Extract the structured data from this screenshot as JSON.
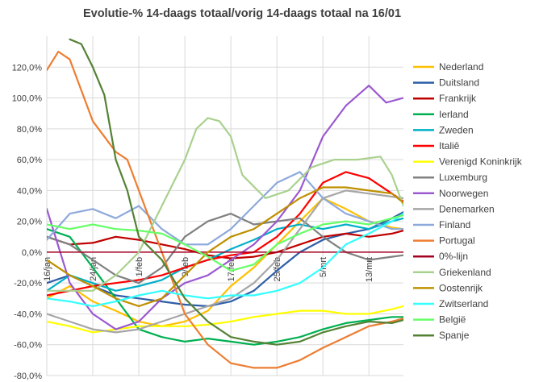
{
  "chart_data": {
    "type": "line",
    "title": "Evolutie-% 14-daags totaal/vorig 14-daags totaal na 16/01",
    "x_tick_labels": [
      "16/jan",
      "24/jan",
      "1/feb",
      "9/feb",
      "17/feb",
      "25/feb",
      "5/mrt",
      "13/mrt"
    ],
    "x_tick_days": [
      0,
      8,
      16,
      24,
      32,
      40,
      48,
      56
    ],
    "x_range": [
      0,
      62
    ],
    "ylim": [
      -80,
      140
    ],
    "y_ticks": [
      -80,
      -60,
      -40,
      -20,
      0,
      20,
      40,
      60,
      80,
      100,
      120
    ],
    "y_tick_labels": [
      "-80,0%",
      "-60,0%",
      "-40,0%",
      "-20,0%",
      "0,0%",
      "20,0%",
      "40,0%",
      "60,0%",
      "80,0%",
      "100,0%",
      "120,0%"
    ],
    "grid": true,
    "legend_position": "right",
    "series": [
      {
        "name": "Nederland",
        "color": "#FFC000",
        "points": [
          [
            0,
            -30
          ],
          [
            4,
            -22
          ],
          [
            8,
            -32
          ],
          [
            12,
            -38
          ],
          [
            16,
            -45
          ],
          [
            20,
            -48
          ],
          [
            24,
            -45
          ],
          [
            28,
            -38
          ],
          [
            32,
            -22
          ],
          [
            36,
            -10
          ],
          [
            40,
            5
          ],
          [
            44,
            20
          ],
          [
            48,
            35
          ],
          [
            52,
            28
          ],
          [
            56,
            20
          ],
          [
            60,
            16
          ],
          [
            62,
            15
          ]
        ]
      },
      {
        "name": "Duitsland",
        "color": "#2E5EA8",
        "points": [
          [
            0,
            -20
          ],
          [
            4,
            -15
          ],
          [
            8,
            -22
          ],
          [
            12,
            -28
          ],
          [
            16,
            -30
          ],
          [
            20,
            -32
          ],
          [
            24,
            -34
          ],
          [
            28,
            -35
          ],
          [
            32,
            -32
          ],
          [
            36,
            -25
          ],
          [
            40,
            -12
          ],
          [
            44,
            0
          ],
          [
            48,
            8
          ],
          [
            52,
            12
          ],
          [
            56,
            15
          ],
          [
            60,
            22
          ],
          [
            62,
            26
          ]
        ]
      },
      {
        "name": "Frankrijk",
        "color": "#C00000",
        "points": [
          [
            0,
            10
          ],
          [
            4,
            5
          ],
          [
            8,
            6
          ],
          [
            12,
            10
          ],
          [
            16,
            8
          ],
          [
            20,
            5
          ],
          [
            24,
            2
          ],
          [
            28,
            -2
          ],
          [
            32,
            -4
          ],
          [
            36,
            -3
          ],
          [
            40,
            0
          ],
          [
            44,
            5
          ],
          [
            48,
            10
          ],
          [
            52,
            12
          ],
          [
            56,
            10
          ],
          [
            60,
            12
          ],
          [
            62,
            14
          ]
        ]
      },
      {
        "name": "Ierland",
        "color": "#00B050",
        "points": [
          [
            0,
            15
          ],
          [
            4,
            10
          ],
          [
            8,
            -10
          ],
          [
            12,
            -30
          ],
          [
            16,
            -50
          ],
          [
            20,
            -55
          ],
          [
            24,
            -58
          ],
          [
            28,
            -56
          ],
          [
            32,
            -58
          ],
          [
            36,
            -60
          ],
          [
            40,
            -58
          ],
          [
            44,
            -55
          ],
          [
            48,
            -50
          ],
          [
            52,
            -46
          ],
          [
            56,
            -44
          ],
          [
            60,
            -42
          ],
          [
            62,
            -42
          ]
        ]
      },
      {
        "name": "Zweden",
        "color": "#00B0C8",
        "points": [
          [
            0,
            -25
          ],
          [
            4,
            -15
          ],
          [
            8,
            -20
          ],
          [
            12,
            -25
          ],
          [
            16,
            -22
          ],
          [
            20,
            -18
          ],
          [
            24,
            -10
          ],
          [
            28,
            -5
          ],
          [
            32,
            2
          ],
          [
            36,
            8
          ],
          [
            40,
            15
          ],
          [
            44,
            18
          ],
          [
            48,
            15
          ],
          [
            52,
            18
          ],
          [
            56,
            15
          ],
          [
            60,
            20
          ],
          [
            62,
            22
          ]
        ]
      },
      {
        "name": "Italiê",
        "color": "#FF0000",
        "points": [
          [
            0,
            -28
          ],
          [
            4,
            -25
          ],
          [
            8,
            -22
          ],
          [
            12,
            -20
          ],
          [
            16,
            -18
          ],
          [
            20,
            -15
          ],
          [
            24,
            -10
          ],
          [
            28,
            -5
          ],
          [
            32,
            -2
          ],
          [
            36,
            0
          ],
          [
            40,
            10
          ],
          [
            44,
            25
          ],
          [
            48,
            45
          ],
          [
            52,
            52
          ],
          [
            56,
            48
          ],
          [
            60,
            38
          ],
          [
            62,
            33
          ]
        ]
      },
      {
        "name": "Verenigd Koninkrijk",
        "color": "#FFFF00",
        "points": [
          [
            0,
            -45
          ],
          [
            4,
            -48
          ],
          [
            8,
            -52
          ],
          [
            12,
            -50
          ],
          [
            16,
            -48
          ],
          [
            20,
            -48
          ],
          [
            24,
            -48
          ],
          [
            28,
            -47
          ],
          [
            32,
            -45
          ],
          [
            36,
            -42
          ],
          [
            40,
            -40
          ],
          [
            44,
            -38
          ],
          [
            48,
            -38
          ],
          [
            52,
            -40
          ],
          [
            56,
            -40
          ],
          [
            60,
            -37
          ],
          [
            62,
            -35
          ]
        ]
      },
      {
        "name": "Luxemburg",
        "color": "#808080",
        "points": [
          [
            0,
            10
          ],
          [
            4,
            5
          ],
          [
            8,
            -5
          ],
          [
            12,
            -15
          ],
          [
            16,
            -20
          ],
          [
            20,
            -10
          ],
          [
            24,
            10
          ],
          [
            28,
            20
          ],
          [
            32,
            25
          ],
          [
            36,
            18
          ],
          [
            40,
            20
          ],
          [
            44,
            22
          ],
          [
            48,
            10
          ],
          [
            52,
            0
          ],
          [
            56,
            -5
          ],
          [
            60,
            -3
          ],
          [
            62,
            -2
          ]
        ]
      },
      {
        "name": "Noorwegen",
        "color": "#9B59D0",
        "points": [
          [
            0,
            28
          ],
          [
            4,
            -20
          ],
          [
            8,
            -40
          ],
          [
            12,
            -50
          ],
          [
            16,
            -45
          ],
          [
            20,
            -30
          ],
          [
            24,
            -20
          ],
          [
            28,
            -15
          ],
          [
            32,
            -5
          ],
          [
            36,
            5
          ],
          [
            40,
            20
          ],
          [
            44,
            40
          ],
          [
            48,
            75
          ],
          [
            52,
            95
          ],
          [
            56,
            108
          ],
          [
            59,
            97
          ],
          [
            62,
            100
          ]
        ]
      },
      {
        "name": "Denemarken",
        "color": "#A6A6A6",
        "points": [
          [
            0,
            -40
          ],
          [
            4,
            -45
          ],
          [
            8,
            -50
          ],
          [
            12,
            -52
          ],
          [
            16,
            -50
          ],
          [
            20,
            -45
          ],
          [
            24,
            -40
          ],
          [
            28,
            -35
          ],
          [
            32,
            -30
          ],
          [
            36,
            -20
          ],
          [
            40,
            -5
          ],
          [
            44,
            15
          ],
          [
            48,
            35
          ],
          [
            52,
            40
          ],
          [
            56,
            38
          ],
          [
            60,
            36
          ],
          [
            62,
            35
          ]
        ]
      },
      {
        "name": "Finland",
        "color": "#8EA9DB",
        "points": [
          [
            0,
            8
          ],
          [
            4,
            25
          ],
          [
            8,
            28
          ],
          [
            12,
            22
          ],
          [
            16,
            30
          ],
          [
            20,
            15
          ],
          [
            24,
            5
          ],
          [
            28,
            5
          ],
          [
            32,
            15
          ],
          [
            36,
            30
          ],
          [
            40,
            45
          ],
          [
            44,
            52
          ],
          [
            48,
            35
          ],
          [
            52,
            25
          ],
          [
            56,
            20
          ],
          [
            60,
            15
          ],
          [
            62,
            15
          ]
        ]
      },
      {
        "name": "Portugal",
        "color": "#ED7D31",
        "points": [
          [
            0,
            118
          ],
          [
            2,
            130
          ],
          [
            4,
            125
          ],
          [
            8,
            85
          ],
          [
            12,
            65
          ],
          [
            14,
            60
          ],
          [
            16,
            40
          ],
          [
            20,
            0
          ],
          [
            24,
            -40
          ],
          [
            28,
            -60
          ],
          [
            32,
            -72
          ],
          [
            36,
            -75
          ],
          [
            40,
            -75
          ],
          [
            44,
            -70
          ],
          [
            48,
            -62
          ],
          [
            52,
            -55
          ],
          [
            56,
            -48
          ],
          [
            60,
            -45
          ],
          [
            62,
            -43
          ]
        ]
      },
      {
        "name": "0%-lijn",
        "color": "#A50021",
        "points": [
          [
            0,
            0
          ],
          [
            62,
            0
          ]
        ]
      },
      {
        "name": "Griekenland",
        "color": "#A9D18E",
        "points": [
          [
            0,
            -25
          ],
          [
            4,
            -25
          ],
          [
            8,
            -25
          ],
          [
            12,
            -15
          ],
          [
            16,
            0
          ],
          [
            20,
            30
          ],
          [
            24,
            60
          ],
          [
            26,
            80
          ],
          [
            28,
            87
          ],
          [
            30,
            85
          ],
          [
            32,
            75
          ],
          [
            34,
            50
          ],
          [
            38,
            35
          ],
          [
            42,
            40
          ],
          [
            46,
            55
          ],
          [
            50,
            60
          ],
          [
            54,
            60
          ],
          [
            58,
            62
          ],
          [
            60,
            50
          ],
          [
            62,
            30
          ]
        ]
      },
      {
        "name": "Oostenrijk",
        "color": "#BF9000",
        "points": [
          [
            0,
            -5
          ],
          [
            4,
            -15
          ],
          [
            8,
            -22
          ],
          [
            12,
            -30
          ],
          [
            16,
            -35
          ],
          [
            20,
            -30
          ],
          [
            24,
            -15
          ],
          [
            28,
            0
          ],
          [
            32,
            10
          ],
          [
            36,
            15
          ],
          [
            40,
            25
          ],
          [
            44,
            35
          ],
          [
            48,
            42
          ],
          [
            52,
            42
          ],
          [
            56,
            40
          ],
          [
            60,
            38
          ],
          [
            62,
            32
          ]
        ]
      },
      {
        "name": "Zwitserland",
        "color": "#33FFFF",
        "points": [
          [
            0,
            -30
          ],
          [
            4,
            -32
          ],
          [
            8,
            -35
          ],
          [
            12,
            -32
          ],
          [
            16,
            -28
          ],
          [
            20,
            -25
          ],
          [
            24,
            -28
          ],
          [
            28,
            -30
          ],
          [
            32,
            -28
          ],
          [
            36,
            -28
          ],
          [
            40,
            -25
          ],
          [
            44,
            -20
          ],
          [
            48,
            -10
          ],
          [
            52,
            5
          ],
          [
            56,
            12
          ],
          [
            60,
            20
          ],
          [
            62,
            25
          ]
        ]
      },
      {
        "name": "België",
        "color": "#66FF66",
        "points": [
          [
            0,
            18
          ],
          [
            4,
            15
          ],
          [
            8,
            18
          ],
          [
            12,
            15
          ],
          [
            16,
            14
          ],
          [
            20,
            12
          ],
          [
            24,
            5
          ],
          [
            28,
            -3
          ],
          [
            32,
            -12
          ],
          [
            36,
            -8
          ],
          [
            40,
            5
          ],
          [
            44,
            12
          ],
          [
            48,
            18
          ],
          [
            52,
            20
          ],
          [
            56,
            18
          ],
          [
            60,
            22
          ],
          [
            62,
            24
          ]
        ]
      },
      {
        "name": "Spanje",
        "color": "#548235",
        "points": [
          [
            4,
            138
          ],
          [
            6,
            135
          ],
          [
            8,
            120
          ],
          [
            10,
            102
          ],
          [
            12,
            60
          ],
          [
            14,
            40
          ],
          [
            16,
            10
          ],
          [
            20,
            -5
          ],
          [
            24,
            -30
          ],
          [
            28,
            -45
          ],
          [
            32,
            -55
          ],
          [
            36,
            -58
          ],
          [
            40,
            -60
          ],
          [
            44,
            -58
          ],
          [
            48,
            -52
          ],
          [
            52,
            -48
          ],
          [
            56,
            -45
          ],
          [
            60,
            -46
          ],
          [
            62,
            -44
          ]
        ]
      }
    ]
  }
}
